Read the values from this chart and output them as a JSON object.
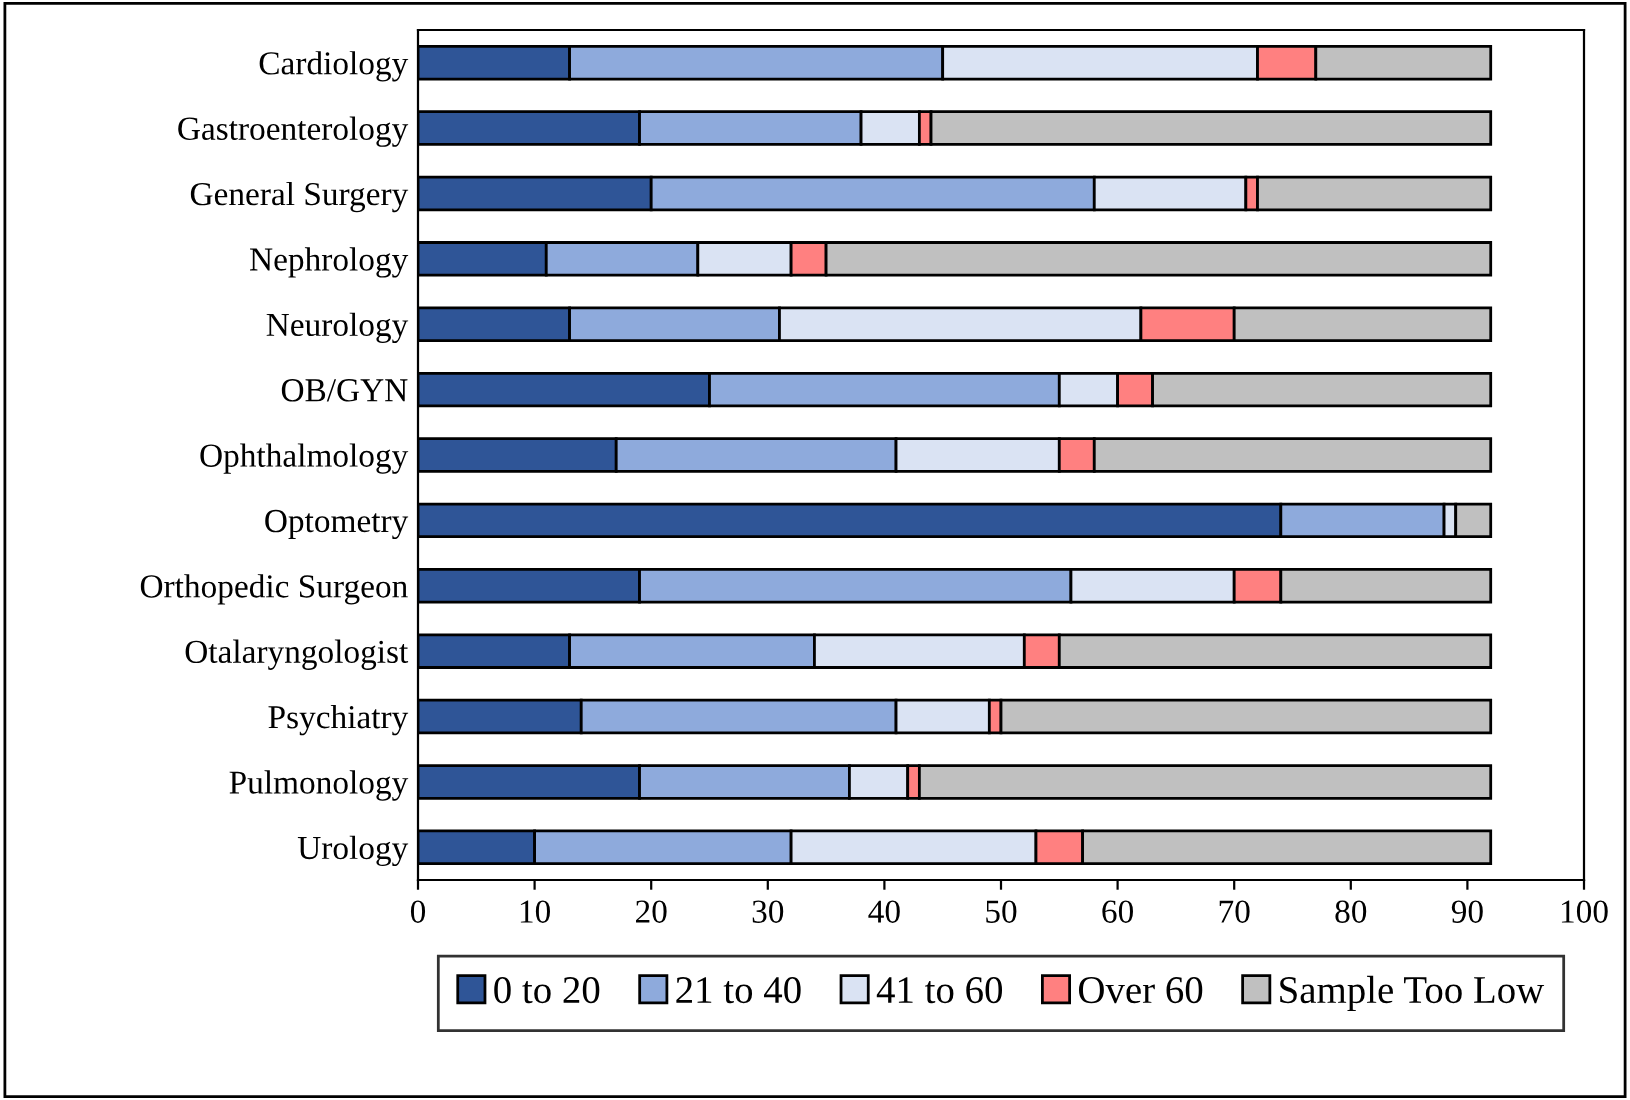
{
  "chart_data": {
    "type": "bar",
    "stacked": true,
    "orientation": "horizontal",
    "categories": [
      "Cardiology",
      "Gastroenterology",
      "General Surgery",
      "Nephrology",
      "Neurology",
      "OB/GYN",
      "Ophthalmology",
      "Optometry",
      "Orthopedic Surgeon",
      "Otalaryngologist",
      "Psychiatry",
      "Pulmonology",
      "Urology"
    ],
    "series": [
      {
        "name": "0 to 20",
        "color": "#2f5597",
        "values": [
          13,
          19,
          20,
          11,
          13,
          25,
          17,
          74,
          19,
          13,
          14,
          19,
          10
        ]
      },
      {
        "name": "21 to 40",
        "color": "#8eaadc",
        "values": [
          32,
          19,
          38,
          13,
          18,
          30,
          24,
          14,
          37,
          21,
          27,
          18,
          22
        ]
      },
      {
        "name": "41 to 60",
        "color": "#dae3f3",
        "values": [
          27,
          5,
          13,
          8,
          31,
          5,
          14,
          1,
          14,
          18,
          8,
          5,
          21
        ]
      },
      {
        "name": "Over 60",
        "color": "#ff8080",
        "values": [
          5,
          1,
          1,
          3,
          8,
          3,
          3,
          null,
          4,
          3,
          1,
          1,
          4
        ]
      },
      {
        "name": "Sample Too Low",
        "color": "#c0c0c0",
        "values": [
          15,
          48,
          20,
          57,
          22,
          29,
          34,
          3,
          18,
          37,
          42,
          49,
          35
        ]
      }
    ],
    "xlim": [
      0,
      100
    ],
    "xticks": [
      0,
      10,
      20,
      30,
      40,
      50,
      60,
      70,
      80,
      90,
      100
    ],
    "grid": false,
    "legend": "bottom"
  }
}
